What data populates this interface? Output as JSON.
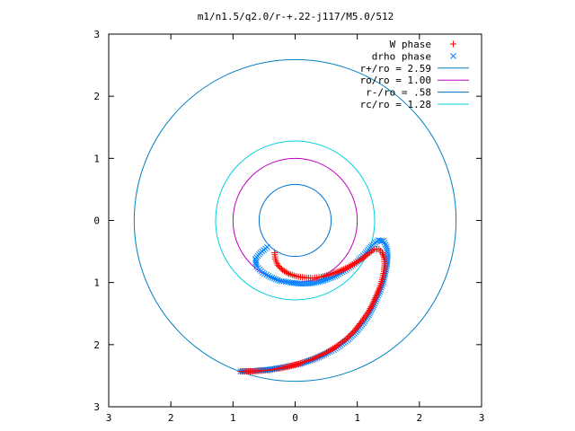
{
  "chart_data": {
    "type": "scatter",
    "title": "m1/n1.5/q2.0/r-+.22-j117/M5.0/512",
    "xlim": [
      -3,
      3
    ],
    "ylim": [
      -3,
      3
    ],
    "x_ticks": [
      -3,
      -2,
      -1,
      0,
      1,
      2,
      3
    ],
    "y_ticks": [
      -3,
      -2,
      -1,
      0,
      1,
      2,
      3
    ],
    "x_tick_labels": [
      "3",
      "2",
      "1",
      "0",
      "1",
      "2",
      "3"
    ],
    "y_tick_labels": [
      "3",
      "2",
      "1",
      "0",
      "1",
      "2",
      "3"
    ],
    "grid": false,
    "legend_position": "top-right",
    "series": [
      {
        "name": "W phase",
        "kind": "points",
        "marker": "+",
        "color": "#ff0000",
        "points": [
          [
            -0.33,
            -0.52
          ],
          [
            -0.32,
            -0.62
          ],
          [
            -0.28,
            -0.72
          ],
          [
            -0.2,
            -0.8
          ],
          [
            -0.1,
            -0.86
          ],
          [
            0.02,
            -0.9
          ],
          [
            0.15,
            -0.92
          ],
          [
            0.28,
            -0.93
          ],
          [
            0.42,
            -0.91
          ],
          [
            0.56,
            -0.87
          ],
          [
            0.7,
            -0.82
          ],
          [
            0.84,
            -0.76
          ],
          [
            0.98,
            -0.68
          ],
          [
            1.1,
            -0.6
          ],
          [
            1.2,
            -0.52
          ],
          [
            1.28,
            -0.46
          ],
          [
            1.35,
            -0.46
          ],
          [
            1.4,
            -0.52
          ],
          [
            1.43,
            -0.6
          ],
          [
            1.44,
            -0.7
          ],
          [
            1.43,
            -0.82
          ],
          [
            1.4,
            -0.95
          ],
          [
            1.36,
            -1.08
          ],
          [
            1.3,
            -1.22
          ],
          [
            1.24,
            -1.36
          ],
          [
            1.16,
            -1.5
          ],
          [
            1.06,
            -1.64
          ],
          [
            0.95,
            -1.78
          ],
          [
            0.82,
            -1.91
          ],
          [
            0.66,
            -2.03
          ],
          [
            0.48,
            -2.14
          ],
          [
            0.28,
            -2.23
          ],
          [
            0.06,
            -2.31
          ],
          [
            -0.18,
            -2.37
          ],
          [
            -0.42,
            -2.41
          ],
          [
            -0.66,
            -2.43
          ],
          [
            -0.88,
            -2.43
          ]
        ]
      },
      {
        "name": "drho phase",
        "kind": "points",
        "marker": "x",
        "color": "#0080ff",
        "points": [
          [
            -0.45,
            -0.43
          ],
          [
            -0.56,
            -0.52
          ],
          [
            -0.64,
            -0.62
          ],
          [
            -0.62,
            -0.74
          ],
          [
            -0.52,
            -0.84
          ],
          [
            -0.4,
            -0.91
          ],
          [
            -0.25,
            -0.97
          ],
          [
            -0.08,
            -1.0
          ],
          [
            0.1,
            -1.02
          ],
          [
            0.28,
            -1.01
          ],
          [
            0.46,
            -0.97
          ],
          [
            0.64,
            -0.9
          ],
          [
            0.82,
            -0.8
          ],
          [
            0.98,
            -0.68
          ],
          [
            1.12,
            -0.54
          ],
          [
            1.24,
            -0.4
          ],
          [
            1.34,
            -0.32
          ],
          [
            1.42,
            -0.33
          ],
          [
            1.47,
            -0.42
          ],
          [
            1.49,
            -0.55
          ],
          [
            1.48,
            -0.7
          ],
          [
            1.45,
            -0.86
          ],
          [
            1.41,
            -1.02
          ],
          [
            1.35,
            -1.18
          ],
          [
            1.28,
            -1.34
          ],
          [
            1.2,
            -1.5
          ],
          [
            1.1,
            -1.65
          ],
          [
            0.98,
            -1.8
          ],
          [
            0.84,
            -1.93
          ],
          [
            0.68,
            -2.05
          ],
          [
            0.5,
            -2.15
          ],
          [
            0.3,
            -2.24
          ],
          [
            0.08,
            -2.31
          ],
          [
            -0.16,
            -2.36
          ],
          [
            -0.4,
            -2.4
          ],
          [
            -0.64,
            -2.42
          ],
          [
            -0.88,
            -2.43
          ]
        ]
      },
      {
        "name": "r+/ro = 2.59",
        "kind": "circle",
        "radius": 2.59,
        "color": "#0080c0"
      },
      {
        "name": "ro/ro = 1.00",
        "kind": "circle",
        "radius": 1.0,
        "color": "#c000c0"
      },
      {
        "name": "r-/ro = .58",
        "kind": "circle",
        "radius": 0.58,
        "color": "#0070d0"
      },
      {
        "name": "rc/ro = 1.28",
        "kind": "circle",
        "radius": 1.28,
        "color": "#00d0e0"
      }
    ]
  }
}
